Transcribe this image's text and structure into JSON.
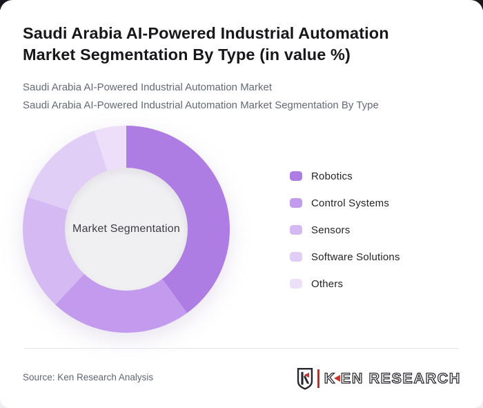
{
  "page": {
    "title": "Saudi Arabia AI-Powered Industrial Automation Market Segmentation By Type (in value %)",
    "subtitle_line1": "Saudi Arabia AI-Powered Industrial Automation Market",
    "subtitle_line2": "Saudi Arabia AI-Powered Industrial Automation Market Segmentation By Type"
  },
  "chart_data": {
    "type": "pie",
    "variant": "donut",
    "title": "Saudi Arabia AI-Powered Industrial Automation Market Segmentation By Type (in value %)",
    "center_label": "Market Segmentation",
    "labels": [
      "Robotics",
      "Control Systems",
      "Sensors",
      "Software Solutions",
      "Others"
    ],
    "values": [
      40,
      22,
      18,
      15,
      5
    ],
    "unit": "%",
    "colors": [
      "#ad7de4",
      "#c29bee",
      "#d5b9f2",
      "#e1cef7",
      "#eddffa"
    ],
    "legend_position": "right",
    "data_labels_shown": false
  },
  "footer": {
    "source": "Source: Ken Research Analysis",
    "logo_k": "K",
    "logo_rest": "EN RESEARCH",
    "logo_accent_color": "#c2362b"
  }
}
